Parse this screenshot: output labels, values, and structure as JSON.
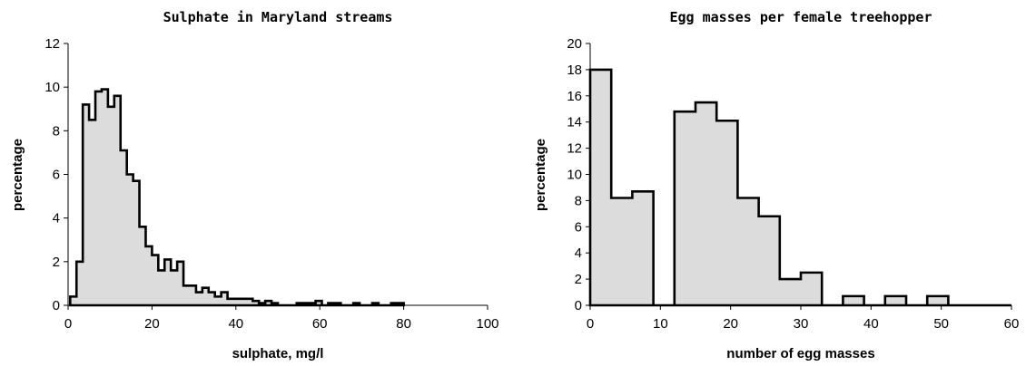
{
  "chart_data": [
    {
      "type": "bar",
      "title": "Sulphate in Maryland streams",
      "xlabel": "sulphate, mg/l",
      "ylabel": "percentage",
      "xlim": [
        0,
        100
      ],
      "ylim": [
        0,
        12
      ],
      "xticks": [
        0,
        20,
        40,
        60,
        80,
        100
      ],
      "yticks": [
        0,
        2,
        4,
        6,
        8,
        10,
        12
      ],
      "bin_width": 1.5,
      "bin_start": 0.5,
      "values": [
        0.4,
        2.0,
        9.2,
        8.5,
        9.8,
        9.9,
        9.1,
        9.6,
        7.1,
        6.0,
        5.7,
        3.6,
        2.7,
        2.3,
        1.6,
        2.1,
        1.6,
        2.0,
        0.9,
        0.9,
        0.6,
        0.8,
        0.6,
        0.4,
        0.6,
        0.3,
        0.3,
        0.3,
        0.3,
        0.2,
        0.1,
        0.2,
        0.1,
        0.0,
        0.0,
        0.0,
        0.1,
        0.1,
        0.1,
        0.2,
        0.0,
        0.1,
        0.1,
        0.0,
        0.0,
        0.1,
        0.0,
        0.0,
        0.1,
        0.0,
        0.0,
        0.1,
        0.1
      ],
      "grid": false,
      "legend": "none"
    },
    {
      "type": "bar",
      "title": "Egg masses per female treehopper",
      "xlabel": "number of egg masses",
      "ylabel": "percentage",
      "xlim": [
        0,
        60
      ],
      "ylim": [
        0,
        20
      ],
      "xticks": [
        0,
        10,
        20,
        30,
        40,
        50,
        60
      ],
      "yticks": [
        0,
        2,
        4,
        6,
        8,
        10,
        12,
        14,
        16,
        18,
        20
      ],
      "bin_width": 3,
      "bin_start": 0,
      "values": [
        18.0,
        8.2,
        8.7,
        0,
        14.8,
        15.5,
        14.1,
        8.2,
        6.8,
        2.0,
        2.5,
        0,
        0.7,
        0,
        0.7,
        0,
        0.7,
        0,
        0,
        0
      ],
      "grid": false,
      "legend": "none"
    }
  ]
}
